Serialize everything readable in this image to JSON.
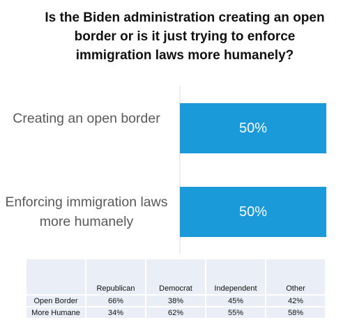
{
  "title": "Is the Biden administration creating an open border or is it just trying to enforce immigration laws more humanely?",
  "chart_data": {
    "type": "bar",
    "orientation": "horizontal",
    "title": "Is the Biden administration creating an open border or is it just trying to enforce immigration laws more humanely?",
    "categories": [
      "Creating an open border",
      "Enforcing immigration laws more humanely"
    ],
    "values": [
      50,
      50
    ],
    "data_labels": [
      "50%",
      "50%"
    ],
    "xlim": [
      0,
      50
    ],
    "bar_color": "#1a9ad9",
    "grid": false
  },
  "crosstab": {
    "columns": [
      "",
      "Republican",
      "Democrat",
      "Independent",
      "Other"
    ],
    "rows": [
      {
        "label": "Open Border",
        "values": [
          "66%",
          "38%",
          "45%",
          "42%"
        ]
      },
      {
        "label": "More Humane",
        "values": [
          "34%",
          "62%",
          "55%",
          "58%"
        ]
      }
    ],
    "cell_color": "#e9eef7"
  }
}
